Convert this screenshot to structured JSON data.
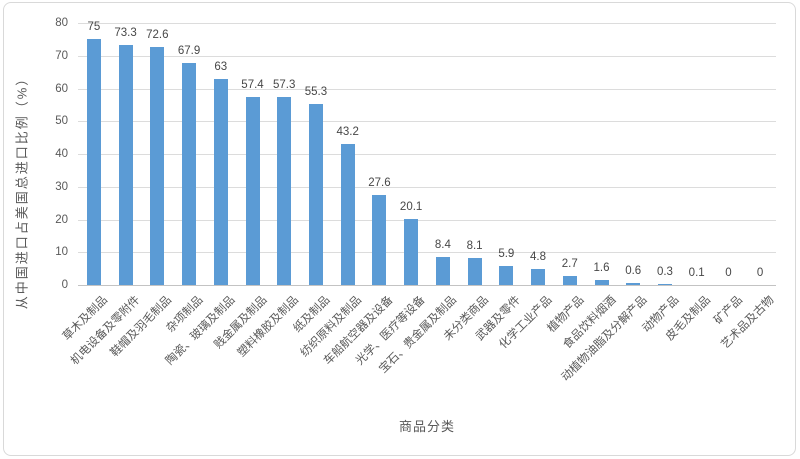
{
  "chart_data": {
    "type": "bar",
    "title": "",
    "xlabel": "商品分类",
    "ylabel": "从中国进口占美国总进口比例（%）",
    "ylim": [
      0,
      80
    ],
    "yticks": [
      0,
      10,
      20,
      30,
      40,
      50,
      60,
      70,
      80
    ],
    "grid": true,
    "legend_position": "none",
    "bar_color": "#5B9BD5",
    "categories": [
      "草木及制品",
      "机电设备及零附件",
      "鞋帽及羽毛制品",
      "杂项制品",
      "陶瓷、玻璃及制品",
      "贱金属及制品",
      "塑料橡胶及制品",
      "纸及制品",
      "纺织原料及制品",
      "车船航空器及设备",
      "光学、医疗等设备",
      "宝石、贵金属及制品",
      "未分类商品",
      "武器及零件",
      "化学工业产品",
      "植物产品",
      "食品饮料烟酒",
      "动植物油脂及分解产品",
      "动物产品",
      "皮毛及制品",
      "矿产品",
      "艺术品及古物"
    ],
    "values": [
      75,
      73.3,
      72.6,
      67.9,
      63,
      57.4,
      57.3,
      55.3,
      43.2,
      27.6,
      20.1,
      8.4,
      8.1,
      5.9,
      4.8,
      2.7,
      1.6,
      0.6,
      0.3,
      0.1,
      0,
      0
    ],
    "value_labels": [
      "75",
      "73.3",
      "72.6",
      "67.9",
      "63",
      "57.4",
      "57.3",
      "55.3",
      "43.2",
      "27.6",
      "20.1",
      "8.4",
      "8.1",
      "5.9",
      "4.8",
      "2.7",
      "1.6",
      "0.6",
      "0.3",
      "0.1",
      "0",
      "0"
    ]
  }
}
